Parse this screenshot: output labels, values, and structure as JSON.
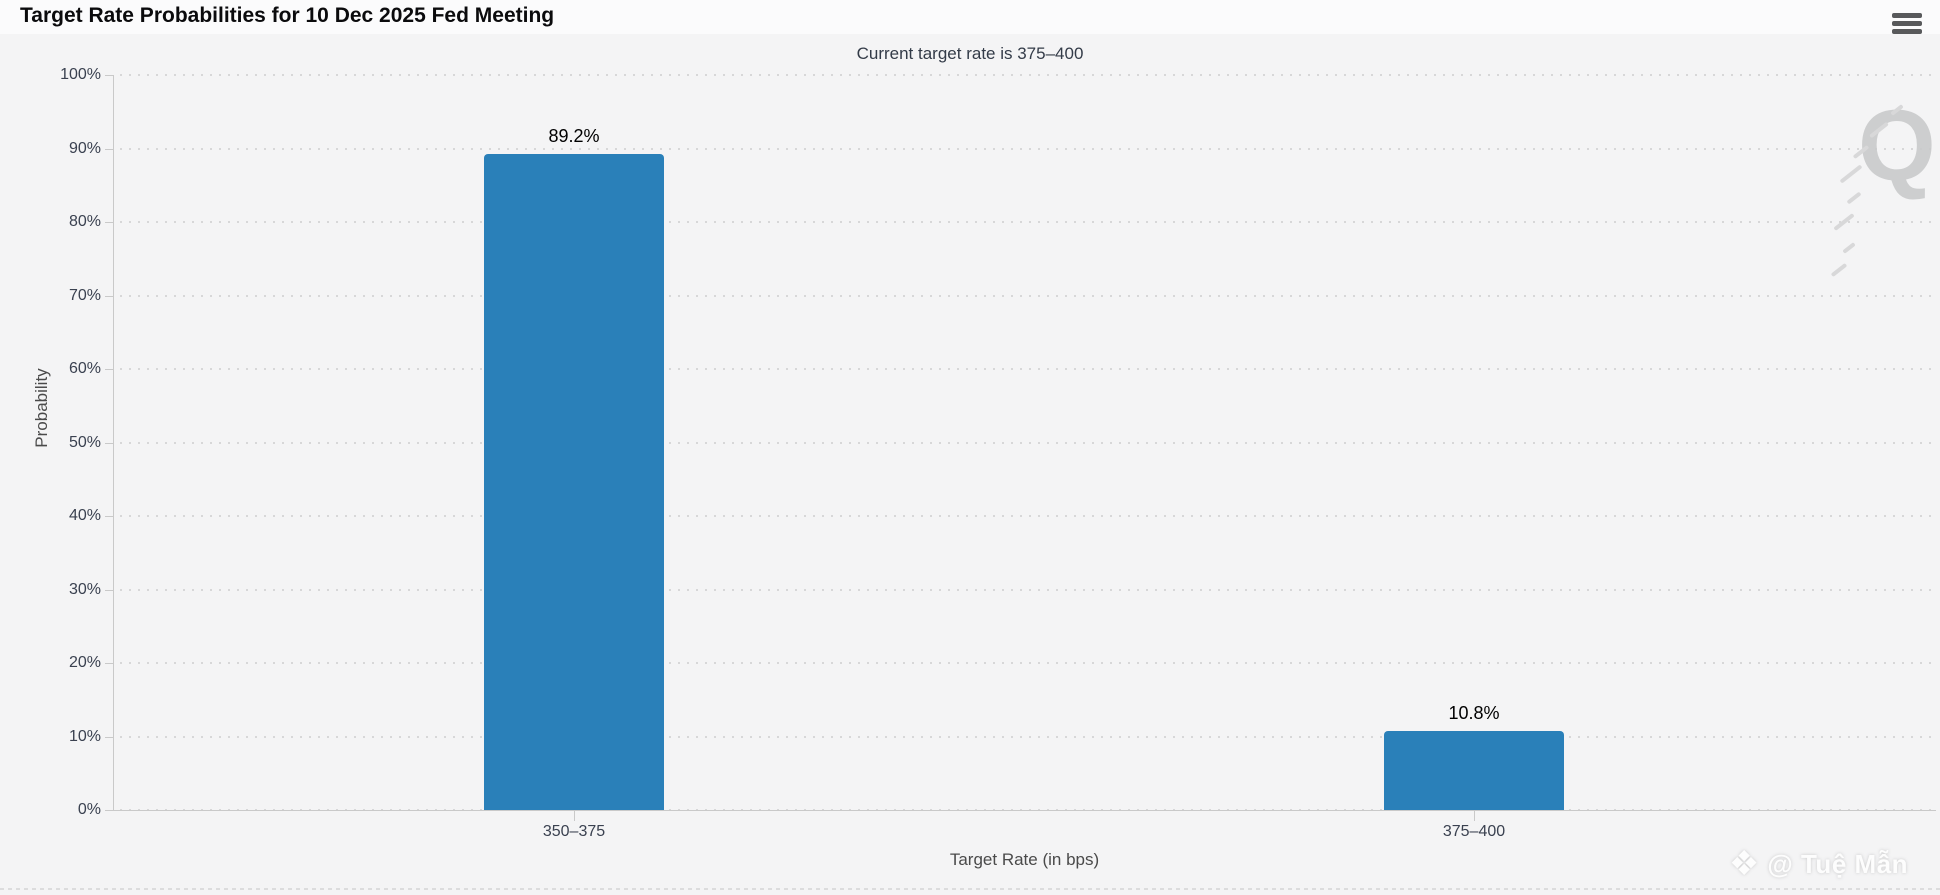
{
  "header": {
    "title": "Target Rate Probabilities for 10 Dec 2025 Fed Meeting"
  },
  "chart_data": {
    "type": "bar",
    "title": "Target Rate Probabilities for 10 Dec 2025 Fed Meeting",
    "subtitle": "Current target rate is 375–400",
    "categories": [
      "350–375",
      "375–400"
    ],
    "values": [
      89.2,
      10.8
    ],
    "value_labels": [
      "89.2%",
      "10.8%"
    ],
    "xlabel": "Target Rate (in bps)",
    "ylabel": "Probability",
    "ylim": [
      0,
      100
    ],
    "yticks": [
      0,
      10,
      20,
      30,
      40,
      50,
      60,
      70,
      80,
      90,
      100
    ],
    "ytick_suffix": "%",
    "grid": "horizontal-dotted",
    "legend": "none",
    "bar_color": "#2a80b9",
    "background_color": "#f4f4f5"
  },
  "watermarks": {
    "q_logo": "Q",
    "credit_text": "@ Tuệ Mẫn"
  }
}
